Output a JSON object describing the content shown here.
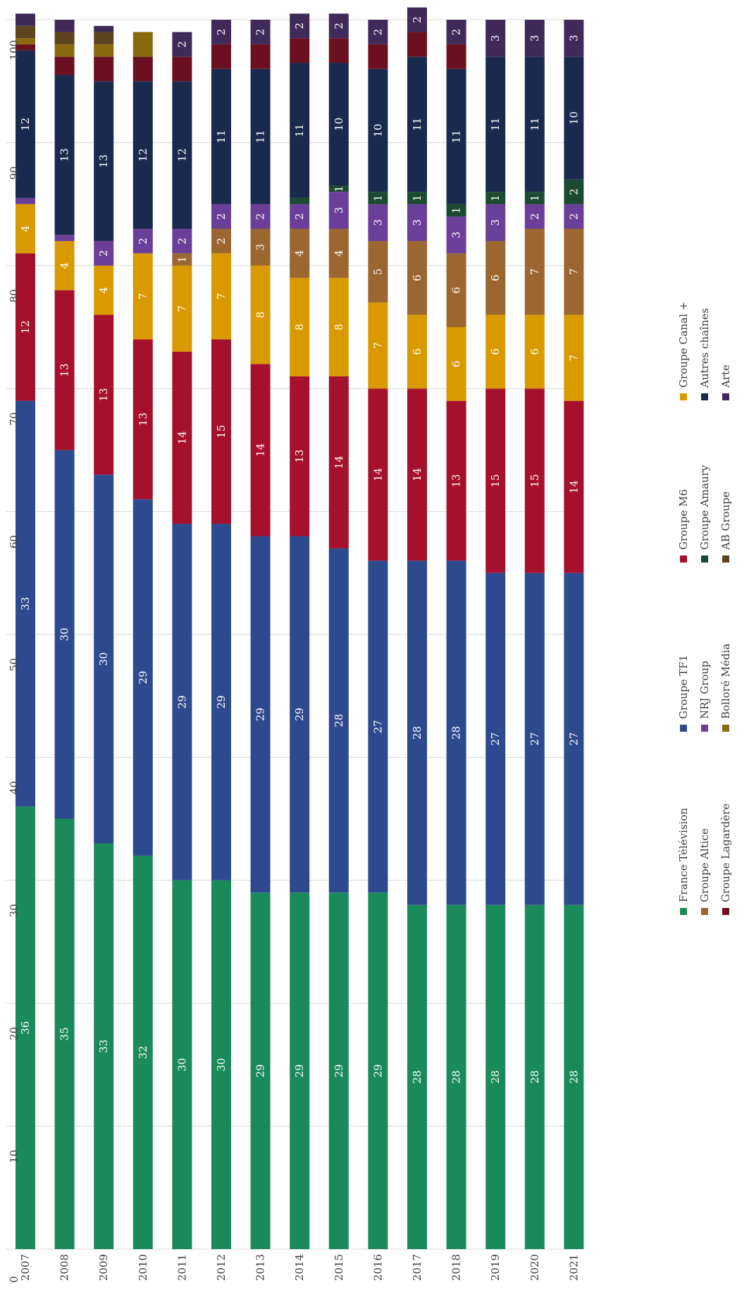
{
  "chart_data": {
    "type": "bar",
    "orientation": "horizontal stacked (rotated 90 degrees)",
    "categories": [
      "2007",
      "2008",
      "2009",
      "2010",
      "2011",
      "2012",
      "2013",
      "2014",
      "2015",
      "2016",
      "2017",
      "2018",
      "2019",
      "2020",
      "2021"
    ],
    "series": [
      {
        "name": "France Télévision",
        "color": "#1b8a5a",
        "values": [
          36,
          35,
          33,
          32,
          30,
          30,
          29,
          29,
          29,
          29,
          28,
          28,
          28,
          28,
          28
        ]
      },
      {
        "name": "Groupe TF1",
        "color": "#2e4a8e",
        "values": [
          33,
          30,
          30,
          29,
          29,
          29,
          29,
          29,
          28,
          27,
          28,
          28,
          27,
          27,
          27
        ]
      },
      {
        "name": "Groupe M6",
        "color": "#a5102c",
        "values": [
          12,
          13,
          13,
          13,
          14,
          15,
          14,
          13,
          14,
          14,
          14,
          13,
          15,
          15,
          14
        ]
      },
      {
        "name": "Groupe Canal +",
        "color": "#d99a00",
        "values": [
          4,
          4,
          4,
          7,
          7,
          7,
          8,
          8,
          8,
          7,
          6,
          6,
          6,
          6,
          7
        ]
      },
      {
        "name": "Groupe Altice",
        "color": "#9c6630",
        "values": [
          0,
          0,
          0,
          0,
          1,
          2,
          3,
          4,
          4,
          5,
          6,
          6,
          6,
          7,
          7
        ]
      },
      {
        "name": "NRJ Group",
        "color": "#6b3f99",
        "values": [
          0.5,
          0.5,
          2,
          2,
          2,
          2,
          2,
          2,
          3,
          3,
          3,
          3,
          3,
          2,
          2
        ]
      },
      {
        "name": "Groupe Amaury",
        "color": "#1c4a30",
        "values": [
          0,
          0,
          0,
          0,
          0,
          0,
          0,
          0.5,
          0.5,
          1,
          1,
          1,
          1,
          1,
          2
        ]
      },
      {
        "name": "Autres chaînes",
        "color": "#1a2a4e",
        "values": [
          12,
          13,
          13,
          12,
          12,
          11,
          11,
          11,
          10,
          10,
          11,
          11,
          11,
          11,
          10
        ]
      },
      {
        "name": "Groupe Lagardère",
        "color": "#6b1020",
        "values": [
          0.5,
          1.5,
          2,
          2,
          2,
          2,
          2,
          2,
          2,
          2,
          2,
          2,
          0,
          0,
          0
        ]
      },
      {
        "name": "Bolloré Média",
        "color": "#8a6a10",
        "values": [
          0.5,
          1,
          1,
          2,
          0,
          0,
          0,
          0,
          0,
          0,
          0,
          0,
          0,
          0,
          0
        ]
      },
      {
        "name": "AB Groupe",
        "color": "#5e4320",
        "values": [
          1,
          1,
          1,
          0,
          0,
          0,
          0,
          0,
          0,
          0,
          0,
          0,
          0,
          0,
          0
        ]
      },
      {
        "name": "Arte",
        "color": "#3f2a5a",
        "values": [
          1,
          1,
          0.5,
          0,
          2,
          2,
          2,
          2,
          2,
          2,
          2,
          2,
          3,
          3,
          3
        ]
      }
    ],
    "data_labels": {
      "France Télévision": [
        "36",
        "35",
        "33",
        "32",
        "30",
        "30",
        "29",
        "29",
        "29",
        "29",
        "28",
        "28",
        "28",
        "28",
        "28"
      ],
      "Groupe TF1": [
        "33",
        "30",
        "30",
        "29",
        "29",
        "29",
        "29",
        "29",
        "28",
        "27",
        "28",
        "28",
        "27",
        "27",
        "27"
      ],
      "Groupe M6": [
        "12",
        "13",
        "13",
        "13",
        "14",
        "15",
        "14",
        "13",
        "14",
        "14",
        "14",
        "13",
        "15",
        "15",
        "14"
      ],
      "Groupe Canal +": [
        "4",
        "4",
        "4",
        "7",
        "7",
        "7",
        "8",
        "8",
        "8",
        "7",
        "6",
        "6",
        "6",
        "6",
        "7"
      ],
      "Groupe Altice": [
        "",
        "",
        "",
        "",
        "1",
        "2",
        "3",
        "4",
        "4",
        "5",
        "6",
        "6",
        "6",
        "7",
        "7"
      ],
      "NRJ Group": [
        "",
        "",
        "2",
        "2",
        "2",
        "2",
        "2",
        "2",
        "3",
        "3",
        "3",
        "3",
        "3",
        "2",
        "2"
      ],
      "Groupe Amaury": [
        "",
        "",
        "",
        "",
        "",
        "",
        "",
        "",
        "1",
        "1",
        "1",
        "1",
        "1",
        "1",
        "2"
      ],
      "Autres chaînes": [
        "12",
        "13",
        "13",
        "12",
        "12",
        "11",
        "11",
        "11",
        "10",
        "10",
        "11",
        "11",
        "11",
        "11",
        "10"
      ],
      "Groupe Lagardère": [
        "",
        "",
        "",
        "",
        "",
        "",
        "",
        "",
        "",
        "",
        "",
        "",
        "",
        "",
        ""
      ],
      "Bolloré Média": [
        "",
        "",
        "",
        "",
        "",
        "",
        "",
        "",
        "",
        "",
        "",
        "",
        "",
        "",
        ""
      ],
      "AB Groupe": [
        "",
        "",
        "",
        "",
        "",
        "",
        "",
        "",
        "",
        "",
        "",
        "",
        "",
        "",
        ""
      ],
      "Arte": [
        "",
        "",
        "",
        "",
        "2",
        "2",
        "2",
        "2",
        "2",
        "2",
        "2",
        "2",
        "3",
        "3",
        "3"
      ]
    },
    "value_axis": {
      "min": 0,
      "max": 100,
      "ticks": [
        "0",
        "10",
        "20",
        "30",
        "40",
        "50",
        "60",
        "70",
        "80",
        "90",
        "100"
      ]
    },
    "grid": true,
    "legend_position": "right (rotated)"
  }
}
